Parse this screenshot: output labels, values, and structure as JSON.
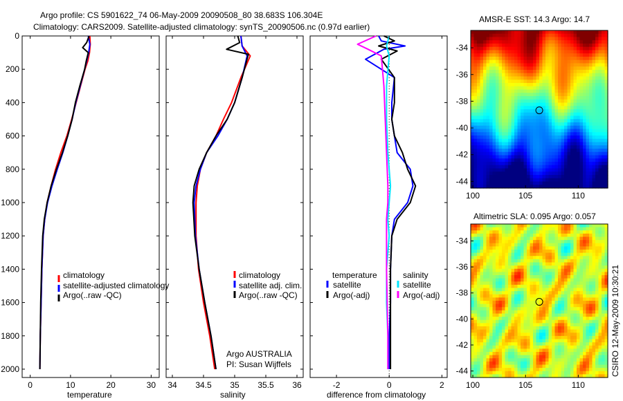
{
  "header": {
    "line1": "Argo profile: CS 5901622_74 06-May-2009 20090508_80 38.683S 106.304E",
    "line2": "Climatology: CARS2009. Satellite-adjusted climatology: synTS_20090506.nc (0.97d earlier)"
  },
  "footer": {
    "agency": "Argo AUSTRALIA",
    "pi": "PI: Susan Wijffels",
    "credit": "CSIRO 12-May-2009 10:30:21"
  },
  "colors": {
    "climatology": "#ff0000",
    "satellite": "#0000ff",
    "argo": "#000000",
    "salinity_satellite": "#00e5ff",
    "salinity_argo": "#ff00ff"
  },
  "chart_data": [
    {
      "type": "line",
      "xlabel": "temperature",
      "ylabel": "",
      "xlim": [
        -2,
        32
      ],
      "ylim": [
        2050,
        0
      ],
      "xticks": [
        "0",
        "10",
        "20",
        "30"
      ],
      "yticks": [
        "0",
        "200",
        "400",
        "600",
        "800",
        "1000",
        "1200",
        "1400",
        "1600",
        "1800",
        "2000"
      ],
      "legend": [
        "climatology",
        "satellite-adjusted climatology",
        "Argo(..raw -QC)"
      ],
      "legend_position": "lower-right",
      "series": [
        {
          "name": "climatology",
          "x": [
            14.8,
            14.9,
            14.7,
            14.3,
            13.6,
            12.5,
            11.4,
            10.3,
            9.1,
            7.6,
            6.3,
            5.2,
            4.2,
            3.6,
            3.2,
            2.9,
            2.7,
            2.5,
            2.4
          ],
          "y": [
            0,
            50,
            100,
            150,
            200,
            300,
            400,
            500,
            600,
            700,
            800,
            900,
            1000,
            1100,
            1200,
            1400,
            1600,
            1800,
            2000
          ]
        },
        {
          "name": "satellite-adjusted climatology",
          "x": [
            14.4,
            14.8,
            14.5,
            14.0,
            13.5,
            12.4,
            11.3,
            10.4,
            9.3,
            8.1,
            6.7,
            5.4,
            4.3,
            3.6,
            3.2,
            2.9,
            2.7,
            2.5,
            2.4
          ],
          "y": [
            0,
            50,
            100,
            150,
            200,
            300,
            400,
            500,
            600,
            700,
            800,
            900,
            1000,
            1100,
            1200,
            1400,
            1600,
            1800,
            2000
          ]
        },
        {
          "name": "Argo(..raw -QC)",
          "x": [
            14.6,
            14.0,
            13.0,
            14.4,
            13.9,
            13.5,
            12.3,
            11.2,
            10.4,
            9.3,
            8.0,
            6.5,
            5.2,
            4.2,
            3.5,
            3.1,
            2.8,
            2.6,
            2.5,
            2.4
          ],
          "y": [
            0,
            40,
            70,
            100,
            150,
            200,
            300,
            400,
            500,
            600,
            700,
            800,
            900,
            1000,
            1100,
            1200,
            1400,
            1600,
            1800,
            2000
          ]
        }
      ]
    },
    {
      "type": "line",
      "xlabel": "salinity",
      "ylabel": "",
      "xlim": [
        33.9,
        36.1
      ],
      "ylim": [
        2050,
        0
      ],
      "xticks": [
        "34",
        "34.5",
        "35",
        "35.5",
        "36"
      ],
      "legend": [
        "climatology",
        "satellite adj. clim.",
        "Argo(..raw -QC)"
      ],
      "legend_position": "lower-right",
      "series": [
        {
          "name": "climatology",
          "x": [
            35.1,
            35.12,
            35.25,
            35.1,
            34.95,
            34.82,
            34.7,
            34.55,
            34.45,
            34.4,
            34.38,
            34.38,
            34.42,
            34.5,
            34.6,
            34.68
          ],
          "y": [
            0,
            60,
            120,
            250,
            400,
            500,
            600,
            700,
            800,
            900,
            1000,
            1200,
            1400,
            1600,
            1800,
            2000
          ]
        },
        {
          "name": "satellite adj. clim.",
          "x": [
            35.1,
            35.12,
            35.2,
            35.12,
            35.0,
            34.88,
            34.73,
            34.55,
            34.45,
            34.38,
            34.35,
            34.37,
            34.43,
            34.52,
            34.62,
            34.7
          ],
          "y": [
            0,
            60,
            120,
            250,
            400,
            500,
            600,
            700,
            800,
            900,
            1000,
            1200,
            1400,
            1600,
            1800,
            2000
          ]
        },
        {
          "name": "Argo(..raw -QC)",
          "x": [
            35.05,
            35.08,
            34.87,
            35.22,
            35.12,
            35.0,
            34.88,
            34.7,
            34.55,
            34.43,
            34.35,
            34.33,
            34.36,
            34.43,
            34.52,
            34.62,
            34.7
          ],
          "y": [
            0,
            40,
            80,
            110,
            250,
            400,
            500,
            600,
            700,
            800,
            900,
            1000,
            1200,
            1400,
            1600,
            1800,
            2000
          ]
        }
      ]
    },
    {
      "type": "line",
      "xlabel": "difference from climatology",
      "ylabel": "",
      "xlim": [
        -3.0,
        2.2
      ],
      "ylim": [
        2050,
        0
      ],
      "xticks": [
        "-2",
        "0",
        "2"
      ],
      "legend": [
        "temperature",
        "satellite",
        "Argo(-adj)",
        "salinity",
        "satellite",
        "Argo(-adj)"
      ],
      "legend_position": "lower-center",
      "series": [
        {
          "name": "satellite",
          "x": [
            -0.4,
            -0.3,
            0.6,
            -0.2,
            -0.9,
            0.2,
            0.1,
            0.1,
            0.2,
            0.3,
            0.8,
            0.9,
            0.7,
            0.2,
            0.1,
            0.05,
            0.05,
            0.0,
            0.0
          ],
          "y": [
            0,
            30,
            60,
            80,
            140,
            250,
            400,
            500,
            600,
            700,
            800,
            900,
            1000,
            1100,
            1200,
            1400,
            1600,
            1800,
            2000
          ]
        },
        {
          "name": "Argo(-adj)",
          "x": [
            -0.2,
            0.2,
            -0.4,
            0.3,
            -0.3,
            0.2,
            0.2,
            0.1,
            0.2,
            0.5,
            0.7,
            1.0,
            0.8,
            0.3,
            0.1,
            0.05,
            0.05,
            0.05,
            0.05
          ],
          "y": [
            0,
            30,
            60,
            90,
            140,
            250,
            400,
            500,
            600,
            700,
            800,
            900,
            1000,
            1100,
            1200,
            1400,
            1600,
            1800,
            2000
          ]
        },
        {
          "name": "satellite",
          "x": [
            0.0,
            -0.1,
            0.0,
            -0.1,
            -0.1,
            -0.05,
            0.0,
            0.05,
            0.0,
            -0.05,
            0.0,
            -0.1,
            -0.1,
            -0.05,
            -0.05
          ],
          "y": [
            0,
            60,
            120,
            300,
            500,
            700,
            800,
            900,
            1000,
            1100,
            1200,
            1400,
            1600,
            1800,
            2000
          ]
        },
        {
          "name": "Argo(-adj)",
          "x": [
            -0.5,
            -1.2,
            -0.8,
            -0.3,
            -0.2,
            -0.15,
            -0.1,
            -0.05,
            -0.05,
            -0.1,
            -0.1,
            -0.1,
            -0.05,
            -0.05
          ],
          "y": [
            0,
            50,
            80,
            120,
            300,
            500,
            700,
            900,
            1000,
            1100,
            1200,
            1400,
            1800,
            2000
          ]
        }
      ]
    },
    {
      "type": "heatmap",
      "title": "AMSR-E SST: 14.3 Argo: 14.7",
      "xlim": [
        99.8,
        112.8
      ],
      "ylim": [
        -44.5,
        -32.7
      ],
      "xticks": [
        "100",
        "105",
        "110"
      ],
      "yticks": [
        "-34",
        "-36",
        "-38",
        "-40",
        "-42",
        "-44"
      ],
      "marker": {
        "lon": 106.304,
        "lat": -38.683
      }
    },
    {
      "type": "heatmap",
      "title": "Altimetric SLA: 0.095 Argo: 0.057",
      "xlim": [
        99.8,
        112.8
      ],
      "ylim": [
        -44.5,
        -32.7
      ],
      "xticks": [
        "100",
        "105",
        "110"
      ],
      "yticks": [
        "-34",
        "-36",
        "-38",
        "-40",
        "-42",
        "-44"
      ],
      "marker": {
        "lon": 106.304,
        "lat": -38.683
      }
    }
  ]
}
